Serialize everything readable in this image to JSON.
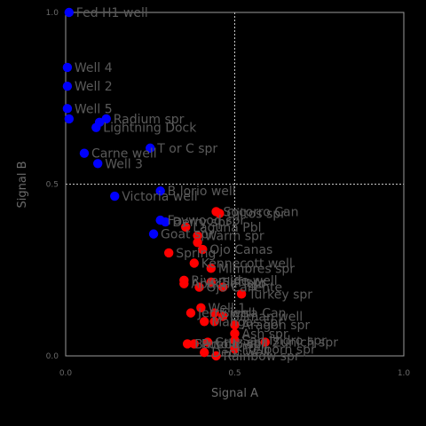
{
  "chart_data": {
    "type": "scatter",
    "xlabel": "Signal A",
    "ylabel": "Signal B",
    "xlim": [
      0,
      1
    ],
    "ylim": [
      0,
      1
    ],
    "xticks": [
      "0.0",
      "0.5",
      "1.0"
    ],
    "yticks": [
      "0.0",
      "0.5",
      "1.0"
    ],
    "grid": true,
    "colors": {
      "cluster_1": "#0000ff",
      "cluster_2": "#ff0000"
    },
    "points": [
      {
        "label": "Fed H1 well",
        "x": 0.01,
        "y": 1.0,
        "c": 1
      },
      {
        "label": "Well 4",
        "x": 0.005,
        "y": 0.84,
        "c": 1
      },
      {
        "label": "Well 2",
        "x": 0.005,
        "y": 0.785,
        "c": 1
      },
      {
        "label": "Well 5",
        "x": 0.005,
        "y": 0.72,
        "c": 1
      },
      {
        "label": "",
        "x": 0.01,
        "y": 0.69,
        "c": 1
      },
      {
        "label": "Radium spr",
        "x": 0.12,
        "y": 0.69,
        "c": 1
      },
      {
        "label": "",
        "x": 0.1,
        "y": 0.68,
        "c": 1
      },
      {
        "label": "Lightning Dock",
        "x": 0.09,
        "y": 0.665,
        "c": 1
      },
      {
        "label": "Carne well",
        "x": 0.055,
        "y": 0.59,
        "c": 1
      },
      {
        "label": "T or C spr",
        "x": 0.25,
        "y": 0.605,
        "c": 1
      },
      {
        "label": "Well 3",
        "x": 0.095,
        "y": 0.56,
        "c": 1
      },
      {
        "label": "B.lorio well",
        "x": 0.28,
        "y": 0.48,
        "c": 1
      },
      {
        "label": "Victoria well",
        "x": 0.145,
        "y": 0.465,
        "c": 1
      },
      {
        "label": "Faywood spr",
        "x": 0.28,
        "y": 0.395,
        "c": 1
      },
      {
        "label": "Derry spr",
        "x": 0.295,
        "y": 0.39,
        "c": 1
      },
      {
        "label": "Goat spr",
        "x": 0.26,
        "y": 0.355,
        "c": 1
      },
      {
        "label": "Socorro Can",
        "x": 0.445,
        "y": 0.42,
        "c": 2
      },
      {
        "label": "Ojitos spr",
        "x": 0.455,
        "y": 0.415,
        "c": 2
      },
      {
        "label": "Laguna Pbl",
        "x": 0.355,
        "y": 0.375,
        "c": 2
      },
      {
        "label": "Warm spr",
        "x": 0.39,
        "y": 0.35,
        "c": 2
      },
      {
        "label": "",
        "x": 0.39,
        "y": 0.33,
        "c": 2
      },
      {
        "label": "Ojo Canas",
        "x": 0.405,
        "y": 0.31,
        "c": 2
      },
      {
        "label": "Spring",
        "x": 0.305,
        "y": 0.3,
        "c": 2
      },
      {
        "label": "Kennecott well",
        "x": 0.38,
        "y": 0.27,
        "c": 2
      },
      {
        "label": "Mimbres spr",
        "x": 0.43,
        "y": 0.255,
        "c": 2
      },
      {
        "label": "Riverside well",
        "x": 0.35,
        "y": 0.22,
        "c": 2
      },
      {
        "label": "Apache Tejo",
        "x": 0.35,
        "y": 0.21,
        "c": 2
      },
      {
        "label": "Ojo Caliente",
        "x": 0.395,
        "y": 0.2,
        "c": 2
      },
      {
        "label": "Cliff spr",
        "x": 0.43,
        "y": 0.215,
        "c": 2
      },
      {
        "label": "",
        "x": 0.465,
        "y": 0.2,
        "c": 2
      },
      {
        "label": "Turkey spr",
        "x": 0.52,
        "y": 0.18,
        "c": 2
      },
      {
        "label": "Well 1",
        "x": 0.4,
        "y": 0.14,
        "c": 2
      },
      {
        "label": "Jerry well",
        "x": 0.37,
        "y": 0.125,
        "c": 2
      },
      {
        "label": "Sierra Can",
        "x": 0.44,
        "y": 0.125,
        "c": 2
      },
      {
        "label": "Gilman well",
        "x": 0.465,
        "y": 0.115,
        "c": 2
      },
      {
        "label": "Mangas spr",
        "x": 0.41,
        "y": 0.1,
        "c": 2
      },
      {
        "label": "Aragon spr",
        "x": 0.5,
        "y": 0.09,
        "c": 2
      },
      {
        "label": "",
        "x": 0.44,
        "y": 0.1,
        "c": 2
      },
      {
        "label": "Ash spr",
        "x": 0.5,
        "y": 0.065,
        "c": 2
      },
      {
        "label": "San Isidro spr",
        "x": 0.5,
        "y": 0.045,
        "c": 2
      },
      {
        "label": "Cruz spr",
        "x": 0.42,
        "y": 0.04,
        "c": 2
      },
      {
        "label": "Zunich spr",
        "x": 0.59,
        "y": 0.04,
        "c": 2
      },
      {
        "label": "Pueblo spr",
        "x": 0.38,
        "y": 0.035,
        "c": 2
      },
      {
        "label": "Bartolo well",
        "x": 0.36,
        "y": 0.035,
        "c": 2
      },
      {
        "label": "Dent well",
        "x": 0.41,
        "y": 0.01,
        "c": 2
      },
      {
        "label": "Frelborn spr",
        "x": 0.5,
        "y": 0.02,
        "c": 2
      },
      {
        "label": "Rainbow spr",
        "x": 0.445,
        "y": 0.0,
        "c": 2
      }
    ]
  }
}
